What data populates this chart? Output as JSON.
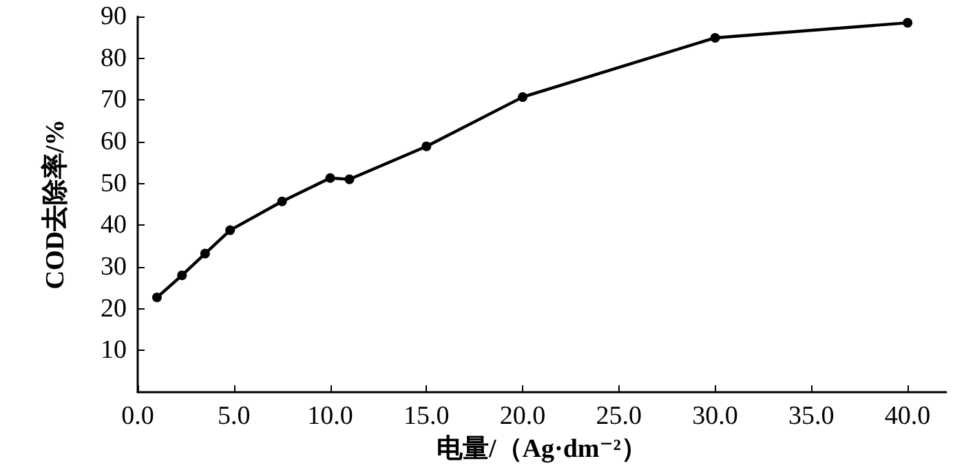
{
  "chart_data": {
    "type": "line",
    "xlabel": "电量/（Ag·dm⁻²）",
    "ylabel": "COD去除率/%",
    "x": [
      1,
      2.3,
      3.5,
      4.8,
      7.5,
      10,
      11,
      15,
      20,
      30,
      40
    ],
    "series": [
      {
        "color": "#000000",
        "values": [
          22.7,
          28,
          33.2,
          38.8,
          45.7,
          51.3,
          51,
          58.9,
          70.7,
          84.9,
          88.5
        ]
      }
    ],
    "xlim": [
      0,
      42
    ],
    "xticks": [
      {
        "value": 0,
        "label": "0.0"
      },
      {
        "value": 5,
        "label": "5.0"
      },
      {
        "value": 10,
        "label": "10.0"
      },
      {
        "value": 15,
        "label": "15.0"
      },
      {
        "value": 20,
        "label": "20.0"
      },
      {
        "value": 25,
        "label": "25.0"
      },
      {
        "value": 30,
        "label": "30.0"
      },
      {
        "value": 35,
        "label": "35.0"
      },
      {
        "value": 40,
        "label": "40.0"
      }
    ],
    "ylim": [
      0,
      90
    ],
    "yticks": [
      10,
      20,
      30,
      40,
      50,
      60,
      70,
      80,
      90
    ],
    "grid": false,
    "marker": "circle",
    "line_style": "solid"
  }
}
